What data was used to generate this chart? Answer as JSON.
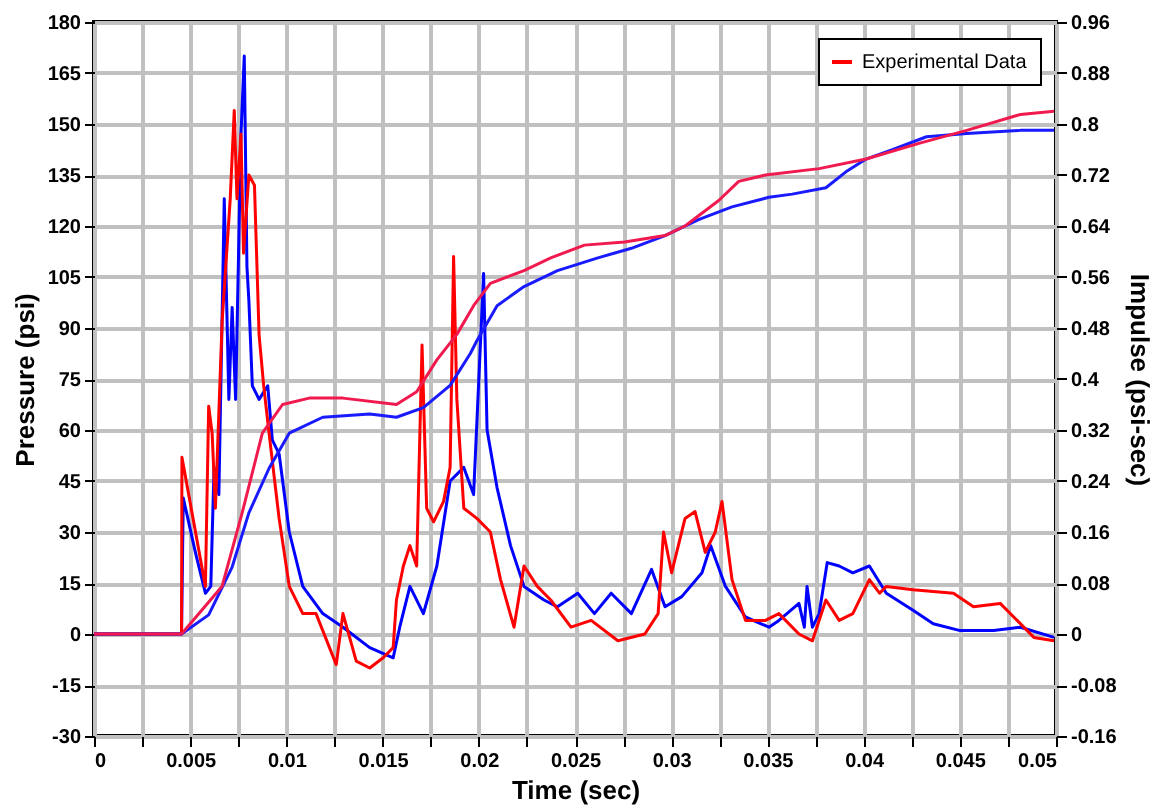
{
  "chart_data": {
    "type": "line",
    "xlabel": "Time (sec)",
    "ylabel": "Pressure (psi)",
    "y2label": "Impulse (psi-sec)",
    "xlim": [
      0,
      0.05
    ],
    "ylim": [
      -30,
      180
    ],
    "y2lim": [
      -0.16,
      0.96
    ],
    "xticks": [
      0,
      {
        "value": 0.0025,
        "label": null
      },
      0.005,
      {
        "value": 0.0075,
        "label": null
      },
      0.01,
      {
        "value": 0.0125,
        "label": null
      },
      0.015,
      {
        "value": 0.0175,
        "label": null
      },
      0.02,
      {
        "value": 0.0225,
        "label": null
      },
      0.025,
      {
        "value": 0.0275,
        "label": null
      },
      0.03,
      {
        "value": 0.0325,
        "label": null
      },
      0.035,
      {
        "value": 0.0375,
        "label": null
      },
      0.04,
      {
        "value": 0.0425,
        "label": null
      },
      0.045,
      {
        "value": 0.0475,
        "label": null
      },
      0.05
    ],
    "yticks": [
      -30,
      -15,
      0,
      15,
      30,
      45,
      60,
      75,
      90,
      105,
      120,
      135,
      150,
      165,
      180
    ],
    "y2ticks": [
      -0.16,
      -0.08,
      0,
      0.08,
      0.16,
      0.24,
      0.32,
      0.4,
      0.48,
      0.56,
      0.64,
      0.72,
      0.8,
      0.88,
      0.96
    ],
    "grid": true,
    "legend": "top right",
    "line_style": "solid",
    "marker": "none",
    "series": [
      {
        "name": "Experimental Data",
        "color": "#ff0000",
        "x": [
          0,
          0.00455,
          0.00457,
          0.00579,
          0.00596,
          0.00614,
          0.00631,
          0.00666,
          0.00708,
          0.00729,
          0.00743,
          0.00764,
          0.00777,
          0.00805,
          0.00834,
          0.00858,
          0.00882,
          0.0091,
          0.00962,
          0.01015,
          0.01085,
          0.01154,
          0.01259,
          0.01294,
          0.01363,
          0.01433,
          0.01503,
          0.01555,
          0.01572,
          0.01608,
          0.01642,
          0.01677,
          0.01705,
          0.01729,
          0.01765,
          0.01817,
          0.01851,
          0.01869,
          0.01886,
          0.01922,
          0.0199,
          0.0206,
          0.02113,
          0.02183,
          0.02235,
          0.02304,
          0.02374,
          0.02479,
          0.02584,
          0.02723,
          0.02863,
          0.02932,
          0.0296,
          0.03002,
          0.03072,
          0.03124,
          0.03177,
          0.03229,
          0.03264,
          0.03316,
          0.03386,
          0.0349,
          0.0356,
          0.03664,
          0.03734,
          0.03804,
          0.03873,
          0.03944,
          0.0403,
          0.04083,
          0.04118,
          0.04257,
          0.04467,
          0.04571,
          0.0471,
          0.04798,
          0.04885,
          0.0499
        ],
        "values": [
          0,
          0,
          52,
          14,
          67,
          59,
          37,
          92,
          128,
          154,
          128,
          147,
          112,
          135,
          132,
          88,
          73,
          59,
          34,
          14,
          6,
          6,
          -9,
          6,
          -8,
          -10,
          -7,
          -4,
          10,
          20,
          26,
          20,
          85,
          37,
          33,
          39,
          49,
          111,
          69,
          37,
          34,
          30,
          16,
          2,
          20,
          14,
          10,
          2,
          4,
          -2,
          0,
          6,
          30,
          18,
          34,
          36,
          24,
          30,
          39,
          16,
          4,
          4,
          6,
          0,
          -2,
          10,
          4,
          6,
          16,
          12,
          14,
          13,
          12,
          8,
          9,
          4,
          -1,
          -2
        ]
      },
      {
        "color": "#0000ff",
        "x": [
          0,
          0.00455,
          0.00464,
          0.00527,
          0.00579,
          0.00607,
          0.00624,
          0.00649,
          0.00677,
          0.00701,
          0.00718,
          0.00736,
          0.00764,
          0.00781,
          0.00795,
          0.00805,
          0.00823,
          0.00858,
          0.00903,
          0.00927,
          0.00962,
          0.01015,
          0.01085,
          0.01189,
          0.01294,
          0.01433,
          0.01555,
          0.01589,
          0.01642,
          0.01712,
          0.01782,
          0.01851,
          0.01922,
          0.01973,
          0.02025,
          0.02043,
          0.02095,
          0.02165,
          0.02235,
          0.02339,
          0.02409,
          0.02514,
          0.02601,
          0.02688,
          0.02793,
          0.02898,
          0.02968,
          0.03055,
          0.0316,
          0.03205,
          0.03282,
          0.03386,
          0.03508,
          0.0356,
          0.03664,
          0.03692,
          0.03706,
          0.03734,
          0.03769,
          0.03811,
          0.03873,
          0.03944,
          0.0403,
          0.04118,
          0.04257,
          0.04362,
          0.04502,
          0.04676,
          0.04815,
          0.0499
        ],
        "values": [
          0,
          0,
          40,
          24,
          12,
          14,
          49,
          41,
          128,
          69,
          96,
          69,
          147,
          170,
          108,
          98,
          73,
          69,
          73,
          57,
          53,
          30,
          14,
          6,
          2,
          -4,
          -7,
          2,
          14,
          6,
          20,
          45,
          49,
          41,
          106,
          60,
          43,
          26,
          14,
          10,
          8,
          12,
          6,
          12,
          6,
          19,
          8,
          11,
          18,
          26,
          14,
          5,
          2,
          4,
          9,
          2,
          14,
          2,
          6,
          21,
          20,
          18,
          20,
          12,
          7,
          3,
          1,
          1,
          2,
          -1
        ]
      },
      {
        "color": "#f01a4f",
        "axis": "y2",
        "x": [
          0,
          0.00455,
          0.00666,
          0.0077,
          0.00875,
          0.0098,
          0.01119,
          0.01294,
          0.01572,
          0.01677,
          0.01782,
          0.01886,
          0.01973,
          0.0206,
          0.02235,
          0.02374,
          0.02549,
          0.02758,
          0.02968,
          0.03072,
          0.03247,
          0.03351,
          0.0349,
          0.03769,
          0.04013,
          0.04292,
          0.04536,
          0.04815,
          0.0499
        ],
        "values": [
          0,
          0,
          0.075,
          0.19,
          0.315,
          0.36,
          0.37,
          0.37,
          0.36,
          0.38,
          0.43,
          0.47,
          0.515,
          0.55,
          0.57,
          0.59,
          0.61,
          0.615,
          0.625,
          0.64,
          0.68,
          0.71,
          0.72,
          0.73,
          0.745,
          0.77,
          0.79,
          0.815,
          0.82
        ]
      },
      {
        "color": "#1a1aff",
        "axis": "y2",
        "x": [
          0,
          0.00455,
          0.00596,
          0.00718,
          0.00805,
          0.0091,
          0.01015,
          0.01189,
          0.01433,
          0.01572,
          0.01712,
          0.01851,
          0.01956,
          0.0199,
          0.02095,
          0.02235,
          0.02409,
          0.02619,
          0.02793,
          0.02968,
          0.03142,
          0.03316,
          0.03508,
          0.03629,
          0.03804,
          0.03908,
          0.04013,
          0.04153,
          0.04327,
          0.04536,
          0.04815,
          0.0499
        ],
        "values": [
          0,
          0,
          0.03,
          0.105,
          0.19,
          0.26,
          0.315,
          0.34,
          0.345,
          0.34,
          0.355,
          0.39,
          0.44,
          0.46,
          0.515,
          0.545,
          0.57,
          0.59,
          0.605,
          0.625,
          0.65,
          0.67,
          0.685,
          0.69,
          0.7,
          0.725,
          0.745,
          0.76,
          0.78,
          0.785,
          0.79,
          0.79
        ]
      }
    ]
  }
}
